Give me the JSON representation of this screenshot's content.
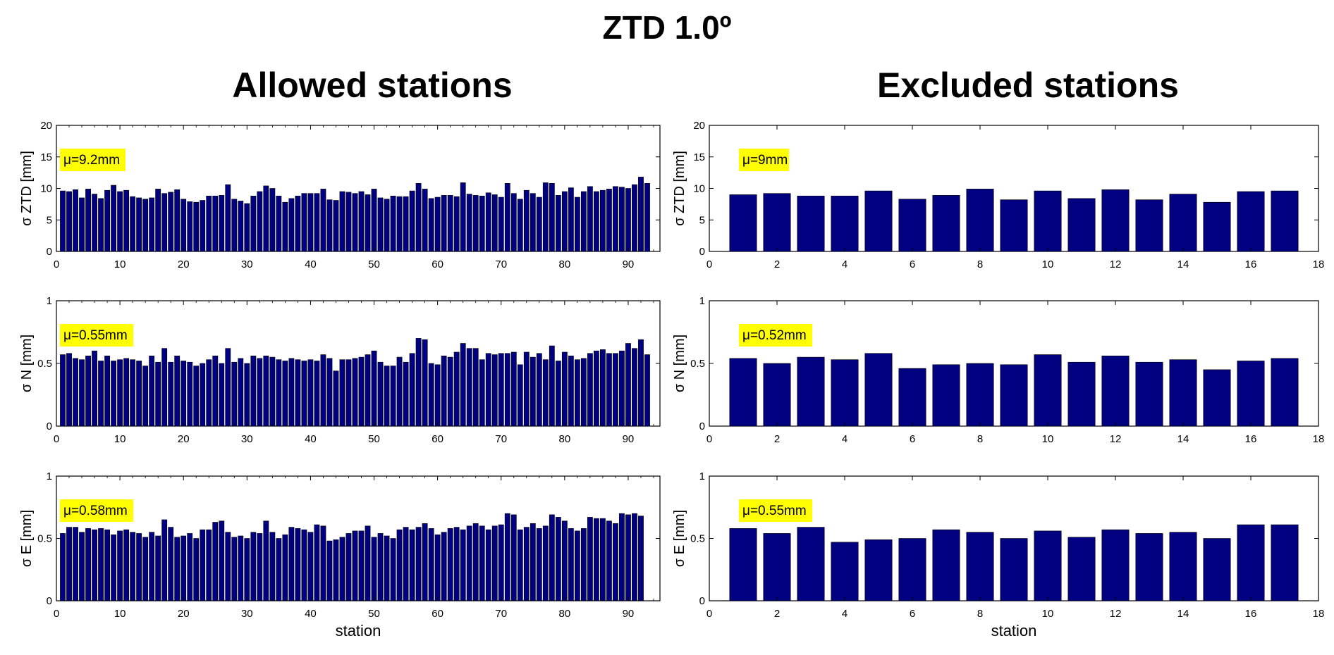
{
  "page": {
    "title": "ZTD 1.0º",
    "left_column_title": "Allowed stations",
    "right_column_title": "Excluded stations"
  },
  "colors": {
    "bar": "#000080",
    "bar_edge": "#000000",
    "mu_box": "#ffff00"
  },
  "chart_data": [
    {
      "id": "allowed-ztd",
      "type": "bar",
      "ylabel": "σ ZTD [mm]",
      "xlabel": "",
      "xlim": [
        0,
        95
      ],
      "ylim": [
        0,
        20
      ],
      "xticks": [
        0,
        10,
        20,
        30,
        40,
        50,
        60,
        70,
        80,
        90
      ],
      "yticks": [
        0,
        5,
        10,
        15,
        20
      ],
      "annotation": "μ=9.2mm",
      "x_start": 1,
      "values": [
        9.6,
        9.5,
        9.8,
        8.5,
        9.9,
        9.1,
        8.4,
        9.7,
        10.5,
        9.5,
        9.7,
        8.7,
        8.5,
        8.3,
        8.5,
        9.9,
        9.2,
        9.4,
        9.8,
        8.3,
        7.9,
        7.8,
        8.1,
        8.8,
        8.8,
        8.9,
        10.6,
        8.3,
        8.0,
        7.6,
        8.8,
        9.5,
        10.4,
        10.0,
        8.8,
        7.8,
        8.4,
        8.8,
        9.2,
        9.2,
        9.2,
        9.9,
        8.2,
        8.1,
        9.5,
        9.4,
        9.2,
        9.5,
        9.0,
        9.9,
        8.5,
        8.3,
        8.8,
        8.7,
        8.7,
        9.6,
        10.8,
        9.9,
        8.4,
        8.6,
        8.9,
        8.9,
        8.7,
        10.9,
        9.1,
        8.9,
        8.8,
        9.3,
        9.0,
        8.6,
        10.8,
        9.2,
        8.3,
        9.7,
        9.2,
        8.6,
        10.9,
        10.8,
        8.9,
        9.5,
        10.1,
        8.6,
        9.5,
        10.3,
        9.5,
        9.7,
        9.9,
        10.3,
        10.2,
        10.0,
        10.6,
        11.8,
        10.8
      ]
    },
    {
      "id": "allowed-n",
      "type": "bar",
      "ylabel": "σ N [mm]",
      "xlabel": "",
      "xlim": [
        0,
        95
      ],
      "ylim": [
        0,
        1
      ],
      "xticks": [
        0,
        10,
        20,
        30,
        40,
        50,
        60,
        70,
        80,
        90
      ],
      "yticks": [
        0,
        0.5,
        1
      ],
      "annotation": "μ=0.55mm",
      "x_start": 1,
      "values": [
        0.57,
        0.58,
        0.54,
        0.53,
        0.56,
        0.6,
        0.52,
        0.56,
        0.52,
        0.53,
        0.54,
        0.53,
        0.52,
        0.48,
        0.56,
        0.51,
        0.62,
        0.51,
        0.56,
        0.52,
        0.51,
        0.48,
        0.5,
        0.53,
        0.56,
        0.5,
        0.62,
        0.51,
        0.54,
        0.5,
        0.56,
        0.54,
        0.56,
        0.55,
        0.53,
        0.52,
        0.54,
        0.53,
        0.52,
        0.53,
        0.52,
        0.57,
        0.54,
        0.44,
        0.53,
        0.53,
        0.54,
        0.55,
        0.57,
        0.6,
        0.51,
        0.48,
        0.48,
        0.55,
        0.51,
        0.58,
        0.7,
        0.69,
        0.5,
        0.49,
        0.56,
        0.55,
        0.59,
        0.66,
        0.62,
        0.62,
        0.53,
        0.58,
        0.57,
        0.58,
        0.58,
        0.59,
        0.49,
        0.59,
        0.55,
        0.58,
        0.53,
        0.64,
        0.52,
        0.59,
        0.56,
        0.53,
        0.54,
        0.58,
        0.6,
        0.61,
        0.58,
        0.58,
        0.6,
        0.66,
        0.62,
        0.69,
        0.57
      ]
    },
    {
      "id": "allowed-e",
      "type": "bar",
      "ylabel": "σ E [mm]",
      "xlabel": "station",
      "xlim": [
        0,
        95
      ],
      "ylim": [
        0,
        1
      ],
      "xticks": [
        0,
        10,
        20,
        30,
        40,
        50,
        60,
        70,
        80,
        90
      ],
      "yticks": [
        0,
        0.5,
        1
      ],
      "annotation": "μ=0.58mm",
      "x_start": 1,
      "values": [
        0.54,
        0.59,
        0.59,
        0.55,
        0.58,
        0.57,
        0.58,
        0.57,
        0.53,
        0.56,
        0.57,
        0.55,
        0.54,
        0.51,
        0.55,
        0.52,
        0.65,
        0.59,
        0.51,
        0.52,
        0.54,
        0.5,
        0.57,
        0.57,
        0.63,
        0.64,
        0.55,
        0.51,
        0.52,
        0.5,
        0.55,
        0.54,
        0.64,
        0.55,
        0.5,
        0.53,
        0.59,
        0.58,
        0.57,
        0.55,
        0.61,
        0.6,
        0.48,
        0.49,
        0.51,
        0.54,
        0.56,
        0.56,
        0.6,
        0.51,
        0.54,
        0.52,
        0.5,
        0.57,
        0.59,
        0.57,
        0.59,
        0.62,
        0.58,
        0.53,
        0.55,
        0.58,
        0.59,
        0.57,
        0.6,
        0.62,
        0.6,
        0.57,
        0.6,
        0.61,
        0.7,
        0.69,
        0.57,
        0.59,
        0.62,
        0.58,
        0.6,
        0.69,
        0.67,
        0.64,
        0.58,
        0.56,
        0.58,
        0.67,
        0.66,
        0.66,
        0.64,
        0.62,
        0.7,
        0.69,
        0.7,
        0.68
      ]
    },
    {
      "id": "excluded-ztd",
      "type": "bar",
      "ylabel": "σ ZTD [mm]",
      "xlabel": "",
      "xlim": [
        0,
        18
      ],
      "ylim": [
        0,
        20
      ],
      "xticks": [
        0,
        2,
        4,
        6,
        8,
        10,
        12,
        14,
        16,
        18
      ],
      "yticks": [
        0,
        5,
        10,
        15,
        20
      ],
      "annotation": "μ=9mm",
      "x_start": 1,
      "values": [
        9.0,
        9.2,
        8.8,
        8.8,
        9.6,
        8.3,
        8.9,
        9.9,
        8.2,
        9.6,
        8.4,
        9.8,
        8.2,
        9.1,
        7.8,
        9.5,
        9.6
      ]
    },
    {
      "id": "excluded-n",
      "type": "bar",
      "ylabel": "σ N [mm]",
      "xlabel": "",
      "xlim": [
        0,
        18
      ],
      "ylim": [
        0,
        1
      ],
      "xticks": [
        0,
        2,
        4,
        6,
        8,
        10,
        12,
        14,
        16,
        18
      ],
      "yticks": [
        0,
        0.5,
        1
      ],
      "annotation": "μ=0.52mm",
      "x_start": 1,
      "values": [
        0.54,
        0.5,
        0.55,
        0.53,
        0.58,
        0.46,
        0.49,
        0.5,
        0.49,
        0.57,
        0.51,
        0.56,
        0.51,
        0.53,
        0.45,
        0.52,
        0.54
      ]
    },
    {
      "id": "excluded-e",
      "type": "bar",
      "ylabel": "σ E [mm]",
      "xlabel": "station",
      "xlim": [
        0,
        18
      ],
      "ylim": [
        0,
        1
      ],
      "xticks": [
        0,
        2,
        4,
        6,
        8,
        10,
        12,
        14,
        16,
        18
      ],
      "yticks": [
        0,
        0.5,
        1
      ],
      "annotation": "μ=0.55mm",
      "x_start": 1,
      "values": [
        0.58,
        0.54,
        0.59,
        0.47,
        0.49,
        0.5,
        0.57,
        0.55,
        0.5,
        0.56,
        0.51,
        0.57,
        0.54,
        0.55,
        0.5,
        0.61,
        0.61
      ]
    }
  ]
}
